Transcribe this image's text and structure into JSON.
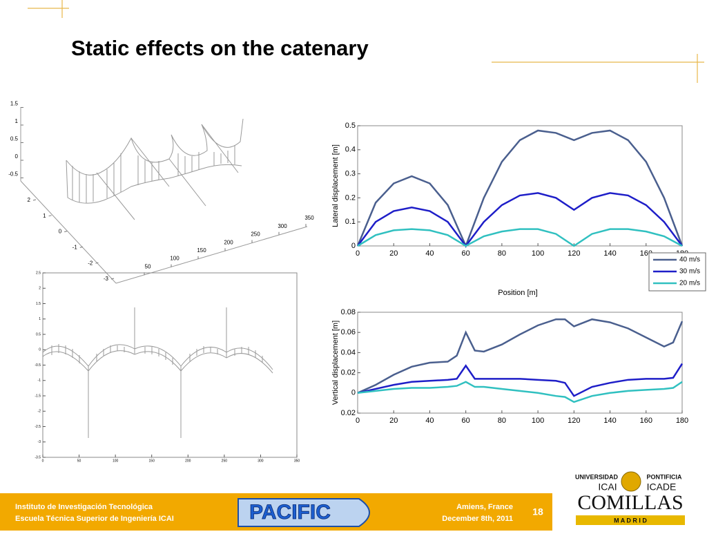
{
  "title": "Static effects on the catenary",
  "chart_data": [
    {
      "type": "line",
      "ylabel": "Lateral displacement [m]",
      "xlabel": "Position [m]",
      "x": [
        0,
        10,
        20,
        30,
        40,
        50,
        60,
        70,
        80,
        90,
        100,
        110,
        120,
        130,
        140,
        150,
        160,
        170,
        180
      ],
      "xlim": [
        0,
        180
      ],
      "xticks": [
        0,
        20,
        40,
        60,
        80,
        100,
        120,
        140,
        160,
        180
      ],
      "ylim": [
        0,
        0.5
      ],
      "yticks": [
        0,
        0.1,
        0.2,
        0.3,
        0.4,
        0.5
      ],
      "legend": "lower right",
      "series": [
        {
          "name": "40 m/s",
          "color": "#4a5f8e",
          "values": [
            0,
            0.18,
            0.26,
            0.29,
            0.26,
            0.17,
            0,
            0.2,
            0.35,
            0.44,
            0.48,
            0.47,
            0.44,
            0.47,
            0.48,
            0.44,
            0.35,
            0.2,
            0
          ]
        },
        {
          "name": "30 m/s",
          "color": "#1e1ec8",
          "values": [
            0,
            0.1,
            0.145,
            0.16,
            0.145,
            0.1,
            0,
            0.1,
            0.17,
            0.21,
            0.22,
            0.2,
            0.15,
            0.2,
            0.22,
            0.21,
            0.17,
            0.1,
            0
          ]
        },
        {
          "name": "20 m/s",
          "color": "#30c0c0",
          "values": [
            0,
            0.045,
            0.065,
            0.07,
            0.065,
            0.045,
            0,
            0.04,
            0.06,
            0.07,
            0.07,
            0.05,
            0,
            0.05,
            0.07,
            0.07,
            0.06,
            0.04,
            0
          ]
        }
      ]
    },
    {
      "type": "line",
      "ylabel": "Vertical displacement [m]",
      "x": [
        0,
        10,
        20,
        30,
        40,
        50,
        55,
        60,
        65,
        70,
        80,
        90,
        100,
        110,
        115,
        120,
        130,
        140,
        150,
        160,
        170,
        175,
        180
      ],
      "xlim": [
        0,
        180
      ],
      "xticks": [
        0,
        20,
        40,
        60,
        80,
        100,
        120,
        140,
        160,
        180
      ],
      "ylim": [
        -0.02,
        0.08
      ],
      "yticks": [
        {
          "value": -0.02,
          "label": "0.02"
        },
        0,
        0.02,
        0.04,
        0.06,
        0.08
      ],
      "series": [
        {
          "color": "#4a5f8e",
          "values": [
            0,
            0.008,
            0.018,
            0.026,
            0.03,
            0.031,
            0.037,
            0.06,
            0.042,
            0.041,
            0.048,
            0.058,
            0.067,
            0.073,
            0.073,
            0.066,
            0.073,
            0.07,
            0.064,
            0.055,
            0.046,
            0.05,
            0.071
          ]
        },
        {
          "color": "#1e1ec8",
          "values": [
            0,
            0.004,
            0.008,
            0.011,
            0.012,
            0.013,
            0.014,
            0.027,
            0.014,
            0.014,
            0.014,
            0.014,
            0.013,
            0.012,
            0.01,
            -0.003,
            0.006,
            0.01,
            0.013,
            0.014,
            0.014,
            0.015,
            0.029
          ]
        },
        {
          "color": "#30c0c0",
          "values": [
            0,
            0.002,
            0.004,
            0.005,
            0.005,
            0.006,
            0.007,
            0.011,
            0.006,
            0.006,
            0.004,
            0.002,
            0,
            -0.003,
            -0.004,
            -0.009,
            -0.003,
            0,
            0.002,
            0.003,
            0.004,
            0.005,
            0.011
          ]
        }
      ]
    },
    {
      "type": "surface3d",
      "xticks": [
        50,
        100,
        150,
        200,
        250,
        300,
        350
      ],
      "yticks": [
        -3,
        -2,
        -1,
        0,
        1,
        2
      ],
      "zticks": [
        -0.5,
        0,
        0.5,
        1,
        1.5
      ]
    },
    {
      "type": "line",
      "xlim": [
        0,
        350
      ],
      "xticks": [
        0,
        50,
        100,
        150,
        200,
        250,
        300,
        350
      ],
      "ylim": [
        -3.5,
        2.5
      ],
      "yticks": [
        -3.5,
        -3,
        -2.5,
        -2,
        -1.5,
        -1,
        -0.5,
        0,
        0.5,
        1,
        1.5,
        2,
        2.5
      ]
    }
  ],
  "footer": {
    "institute": "Instituto de Investigación Tecnológica",
    "school": "Escuela Técnica Superior de Ingeniería ICAI",
    "logo": "PACIFIC",
    "place": "Amiens, France",
    "date": "December 8th, 2011",
    "page": "18"
  },
  "university_logo": {
    "top_left": "UNIVERSIDAD",
    "top_right": "PONTIFICIA",
    "left": "ICAI",
    "right": "ICADE",
    "name": "COMILLAS",
    "city": "M A D R I D"
  }
}
